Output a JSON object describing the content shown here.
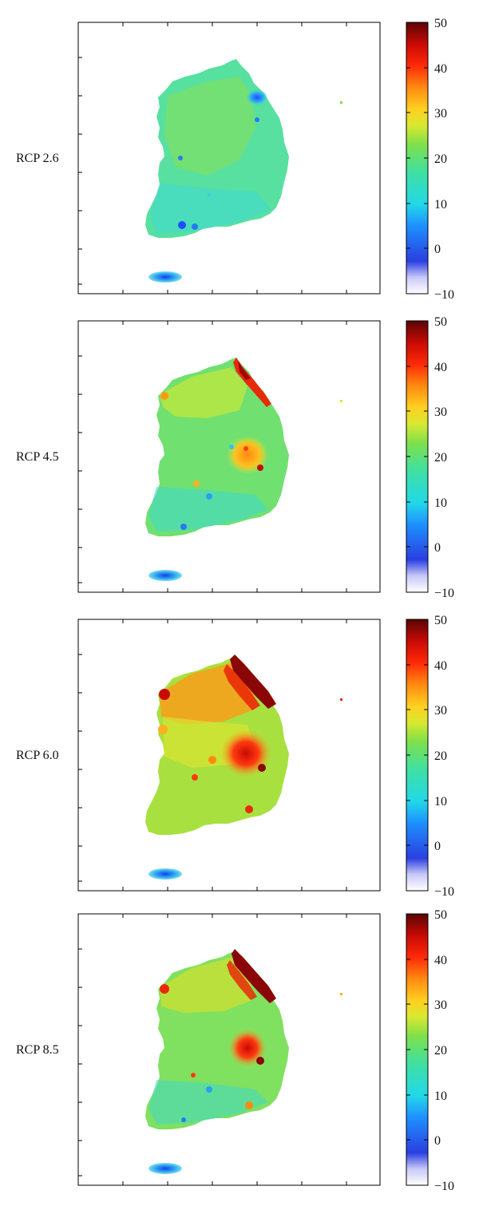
{
  "chart_data": [
    {
      "type": "heatmap",
      "row_label": "RCP 2.6",
      "colorbar": {
        "min": -10,
        "max": 50,
        "ticks": [
          "50",
          "40",
          "30",
          "20",
          "10",
          "0",
          "−10"
        ]
      },
      "dominant_value_range": [
        10,
        25
      ],
      "hotspots": [
        {
          "region": "northeast coast",
          "value": 0
        },
        {
          "region": "southern coast",
          "value": 5
        },
        {
          "region": "island",
          "value": 3
        }
      ]
    },
    {
      "type": "heatmap",
      "row_label": "RCP 4.5",
      "colorbar": {
        "min": -10,
        "max": 50,
        "ticks": [
          "50",
          "40",
          "30",
          "20",
          "10",
          "0",
          "−10"
        ]
      },
      "dominant_value_range": [
        12,
        28
      ],
      "hotspots": [
        {
          "region": "northeast coast",
          "value": 42
        },
        {
          "region": "southeast inland",
          "value": 32
        },
        {
          "region": "island",
          "value": 5
        }
      ]
    },
    {
      "type": "heatmap",
      "row_label": "RCP 6.0",
      "colorbar": {
        "min": -10,
        "max": 50,
        "ticks": [
          "50",
          "40",
          "30",
          "20",
          "10",
          "0",
          "−10"
        ]
      },
      "dominant_value_range": [
        20,
        35
      ],
      "hotspots": [
        {
          "region": "northeast coast",
          "value": 50
        },
        {
          "region": "northwest",
          "value": 38
        },
        {
          "region": "southeast inland",
          "value": 42
        },
        {
          "region": "island",
          "value": 8
        }
      ]
    },
    {
      "type": "heatmap",
      "row_label": "RCP 8.5",
      "colorbar": {
        "min": -10,
        "max": 50,
        "ticks": [
          "50",
          "40",
          "30",
          "20",
          "10",
          "0",
          "−10"
        ]
      },
      "dominant_value_range": [
        15,
        30
      ],
      "hotspots": [
        {
          "region": "northeast coast",
          "value": 48
        },
        {
          "region": "southeast inland",
          "value": 40
        },
        {
          "region": "island",
          "value": 4
        }
      ]
    }
  ]
}
